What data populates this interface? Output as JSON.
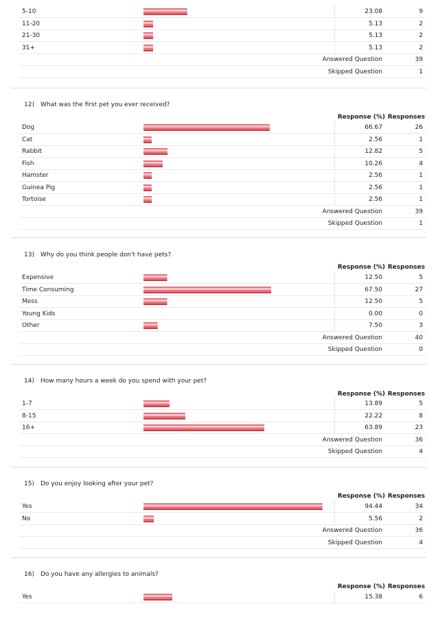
{
  "bar_colors": {
    "fill": "#e8737d",
    "highlight": "#f6c3c7",
    "edge": "#c8404c"
  },
  "sections": [
    {
      "id": "q11",
      "number": "",
      "question": "",
      "headers": null,
      "rows": [
        {
          "label": "5-10",
          "percent": "23.08",
          "value": 23.08,
          "count": "9"
        },
        {
          "label": "11-20",
          "percent": "5.13",
          "value": 5.13,
          "count": "2"
        },
        {
          "label": "21-30",
          "percent": "5.13",
          "value": 5.13,
          "count": "2"
        },
        {
          "label": "31+",
          "percent": "5.13",
          "value": 5.13,
          "count": "2"
        }
      ],
      "answered": {
        "label": "Answered Question",
        "count": "39"
      },
      "skipped": {
        "label": "Skipped Question",
        "count": "1"
      }
    },
    {
      "id": "q12",
      "number": "12)",
      "question": "What was the first pet you ever received?",
      "headers": {
        "percent": "Response (%)",
        "count": "Responses"
      },
      "rows": [
        {
          "label": "Dog",
          "percent": "66.67",
          "value": 66.67,
          "count": "26"
        },
        {
          "label": "Cat",
          "percent": "2.56",
          "value": 2.56,
          "count": "1"
        },
        {
          "label": "Rabbit",
          "percent": "12.82",
          "value": 12.82,
          "count": "5"
        },
        {
          "label": "Fish",
          "percent": "10.26",
          "value": 10.26,
          "count": "4"
        },
        {
          "label": "Hamster",
          "percent": "2.56",
          "value": 2.56,
          "count": "1"
        },
        {
          "label": "Guinea Pig",
          "percent": "2.56",
          "value": 2.56,
          "count": "1"
        },
        {
          "label": "Tortoise",
          "percent": "2.56",
          "value": 2.56,
          "count": "1"
        }
      ],
      "answered": {
        "label": "Answered Question",
        "count": "39"
      },
      "skipped": {
        "label": "Skipped Question",
        "count": "1"
      }
    },
    {
      "id": "q13",
      "number": "13)",
      "question": "Why do you think people don't have pets?",
      "headers": {
        "percent": "Response (%)",
        "count": "Responses"
      },
      "rows": [
        {
          "label": "Expensive",
          "percent": "12.50",
          "value": 12.5,
          "count": "5"
        },
        {
          "label": "Time Consuming",
          "percent": "67.50",
          "value": 67.5,
          "count": "27"
        },
        {
          "label": "Mess",
          "percent": "12.50",
          "value": 12.5,
          "count": "5"
        },
        {
          "label": "Young Kids",
          "percent": "0.00",
          "value": 0,
          "count": "0"
        },
        {
          "label": "Other",
          "percent": "7.50",
          "value": 7.5,
          "count": "3"
        }
      ],
      "answered": {
        "label": "Answered Question",
        "count": "40"
      },
      "skipped": {
        "label": "Skipped Question",
        "count": "0"
      }
    },
    {
      "id": "q14",
      "number": "14)",
      "question": "How many hours a week do you spend with your pet?",
      "headers": {
        "percent": "Response (%)",
        "count": "Responses"
      },
      "rows": [
        {
          "label": "1-7",
          "percent": "13.89",
          "value": 13.89,
          "count": "5"
        },
        {
          "label": "8-15",
          "percent": "22.22",
          "value": 22.22,
          "count": "8"
        },
        {
          "label": "16+",
          "percent": "63.89",
          "value": 63.89,
          "count": "23"
        }
      ],
      "answered": {
        "label": "Answered Question",
        "count": "36"
      },
      "skipped": {
        "label": "Skipped Question",
        "count": "4"
      }
    },
    {
      "id": "q15",
      "number": "15)",
      "question": "Do you enjoy looking after your pet?",
      "headers": {
        "percent": "Response (%)",
        "count": "Responses"
      },
      "rows": [
        {
          "label": "Yes",
          "percent": "94.44",
          "value": 94.44,
          "count": "34"
        },
        {
          "label": "No",
          "percent": "5.56",
          "value": 5.56,
          "count": "2"
        }
      ],
      "answered": {
        "label": "Answered Question",
        "count": "36"
      },
      "skipped": {
        "label": "Skipped Question",
        "count": "4"
      }
    },
    {
      "id": "q16",
      "number": "16)",
      "question": "Do you have any allergies to animals?",
      "headers": {
        "percent": "Response (%)",
        "count": "Responses"
      },
      "rows": [
        {
          "label": "Yes",
          "percent": "15.38",
          "value": 15.38,
          "count": "6"
        }
      ],
      "answered": null,
      "skipped": null
    }
  ]
}
